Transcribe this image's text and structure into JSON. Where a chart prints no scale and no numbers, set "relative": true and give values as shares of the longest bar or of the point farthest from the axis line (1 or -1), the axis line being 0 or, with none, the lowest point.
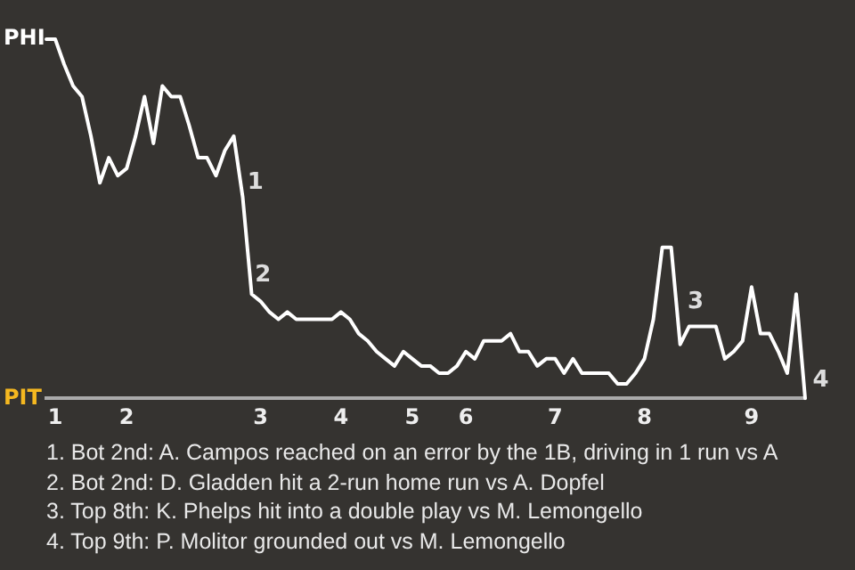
{
  "chart_data": {
    "type": "line",
    "relative": true,
    "categories": [
      null,
      "1",
      null,
      null,
      null,
      null,
      null,
      null,
      null,
      "2",
      null,
      null,
      null,
      null,
      null,
      null,
      null,
      null,
      null,
      null,
      null,
      null,
      null,
      null,
      "3",
      null,
      null,
      null,
      null,
      null,
      null,
      null,
      null,
      "4",
      null,
      null,
      null,
      null,
      null,
      null,
      null,
      "5",
      null,
      null,
      null,
      null,
      null,
      "6",
      null,
      null,
      null,
      null,
      null,
      null,
      null,
      null,
      null,
      "7",
      null,
      null,
      null,
      null,
      null,
      null,
      null,
      null,
      null,
      "8",
      null,
      null,
      null,
      null,
      null,
      null,
      null,
      null,
      null,
      null,
      null,
      "9",
      null,
      null,
      null,
      null,
      null,
      null
    ],
    "series": [
      {
        "color": "#ffffff",
        "values": [
          1,
          1,
          0.93,
          0.87,
          0.84,
          0.73,
          0.6,
          0.67,
          0.62,
          0.64,
          0.73,
          0.84,
          0.71,
          0.87,
          0.84,
          0.84,
          0.76,
          0.67,
          0.67,
          0.62,
          0.69,
          0.73,
          0.56,
          0.29,
          0.27,
          0.24,
          0.22,
          0.24,
          0.22,
          0.22,
          0.22,
          0.22,
          0.22,
          0.24,
          0.22,
          0.18,
          0.16,
          0.13,
          0.11,
          0.09,
          0.13,
          0.11,
          0.09,
          0.09,
          0.07,
          0.07,
          0.09,
          0.13,
          0.11,
          0.16,
          0.16,
          0.16,
          0.18,
          0.13,
          0.13,
          0.09,
          0.11,
          0.11,
          0.07,
          0.11,
          0.07,
          0.07,
          0.07,
          0.07,
          0.04,
          0.04,
          0.07,
          0.11,
          0.22,
          0.42,
          0.42,
          0.15,
          0.2,
          0.2,
          0.2,
          0.2,
          0.11,
          0.13,
          0.16,
          0.31,
          0.18,
          0.18,
          0.13,
          0.07,
          0.29,
          0
        ]
      }
    ],
    "legend": false,
    "annotations": [
      "PHI",
      "PIT",
      "1",
      "2",
      "3",
      "4",
      "1. Bot 2nd: A. Campos reached on an error by the 1B, driving in 1 run vs A",
      "2. Bot 2nd: D. Gladden hit a 2-run home run vs A. Dopfel",
      "3. Top 8th: K. Phelps hit into a double play vs M. Lemongello",
      "4. Top 9th: P. Molitor grounded out vs M. Lemongello"
    ]
  }
}
